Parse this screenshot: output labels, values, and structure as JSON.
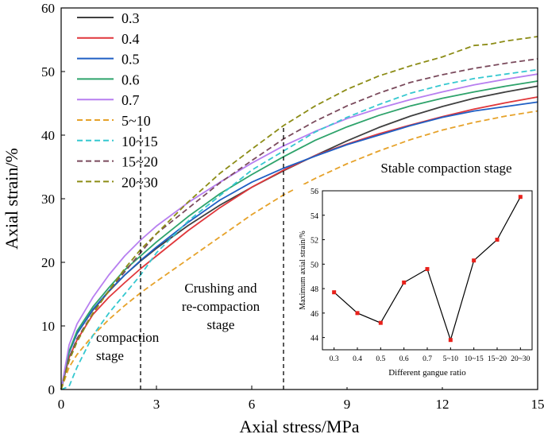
{
  "chart_data": [
    {
      "type": "line",
      "title": "",
      "xlabel": "Axial stress/MPa",
      "ylabel": "Axial strain/%",
      "xlim": [
        0,
        15
      ],
      "ylim": [
        0,
        60
      ],
      "xticks": [
        0,
        3,
        6,
        9,
        12,
        15
      ],
      "yticks": [
        0,
        10,
        20,
        30,
        40,
        50,
        60
      ],
      "grid": false,
      "legend_position": "top-left",
      "stage_dividers": [
        2.5,
        7
      ],
      "annotations": [
        {
          "lines": [
            "Stable compaction stage"
          ],
          "anchor": "right-middle"
        },
        {
          "lines": [
            "Crushing and",
            "re-compaction",
            "stage"
          ],
          "anchor": "center-bottom"
        },
        {
          "lines": [
            "compaction",
            "stage"
          ],
          "anchor": "left-bottom"
        }
      ],
      "series": [
        {
          "name": "0.3",
          "style": "solid",
          "color": "#404040",
          "x": [
            0,
            0.25,
            0.5,
            1,
            1.5,
            2,
            2.5,
            3,
            4,
            5,
            6,
            7,
            8,
            9,
            10,
            11,
            12,
            13,
            14,
            15
          ],
          "y": [
            0,
            6,
            8.8,
            12.5,
            15.4,
            18,
            20.2,
            22.2,
            25.8,
            29,
            31.8,
            34.4,
            36.8,
            39.1,
            41.2,
            43,
            44.5,
            45.8,
            46.8,
            47.7
          ]
        },
        {
          "name": "0.4",
          "style": "solid",
          "color": "#e0373b",
          "x": [
            0,
            0.25,
            0.5,
            1,
            1.5,
            2,
            2.5,
            3,
            4,
            5,
            6,
            7,
            8,
            9,
            10,
            11,
            12,
            13,
            14,
            15
          ],
          "y": [
            0,
            5,
            7.8,
            11.8,
            14.5,
            16.8,
            19,
            21,
            25,
            28.6,
            31.8,
            34.5,
            36.8,
            38.6,
            40.2,
            41.6,
            42.9,
            44.1,
            45.1,
            46
          ]
        },
        {
          "name": "0.5",
          "style": "solid",
          "color": "#1f5fc4",
          "x": [
            0,
            0.25,
            0.5,
            1,
            1.5,
            2,
            2.5,
            3,
            4,
            5,
            6,
            7,
            8,
            9,
            10,
            11,
            12,
            13,
            14,
            15
          ],
          "y": [
            0,
            5.8,
            8.8,
            12.6,
            15.5,
            18,
            20.3,
            22.4,
            26.3,
            29.8,
            32.6,
            34.8,
            36.7,
            38.5,
            40,
            41.5,
            42.8,
            43.8,
            44.5,
            45.2
          ]
        },
        {
          "name": "0.6",
          "style": "solid",
          "color": "#2ea36b",
          "x": [
            0,
            0.25,
            0.5,
            1,
            1.5,
            2,
            2.5,
            3,
            4,
            5,
            6,
            7,
            8,
            9,
            10,
            11,
            12,
            13,
            14,
            15
          ],
          "y": [
            0,
            6,
            9.2,
            13,
            16,
            18.8,
            21,
            23.2,
            27.2,
            30.8,
            33.8,
            36.6,
            39.2,
            41.3,
            43.1,
            44.6,
            45.8,
            46.8,
            47.7,
            48.5
          ]
        },
        {
          "name": "0.7",
          "style": "solid",
          "color": "#b77ff0",
          "x": [
            0,
            0.25,
            0.5,
            1,
            1.5,
            2,
            2.5,
            3,
            4,
            5,
            6,
            7,
            8,
            9,
            10,
            11,
            12,
            13,
            14,
            15
          ],
          "y": [
            0,
            7,
            10.3,
            14.5,
            18,
            21,
            23.5,
            25.7,
            29.4,
            32.6,
            35.6,
            38.3,
            40.6,
            42.6,
            44.2,
            45.6,
            46.8,
            47.9,
            48.8,
            49.6
          ]
        },
        {
          "name": "5~10",
          "style": "dashed",
          "color": "#e6a22a",
          "x": [
            0,
            0.25,
            0.5,
            1,
            1.5,
            2,
            2.5,
            3,
            4,
            5,
            6,
            7,
            8,
            9,
            10,
            11,
            12,
            13,
            14,
            15
          ],
          "y": [
            0,
            3.5,
            5.5,
            8.5,
            11,
            13.2,
            15.2,
            17,
            20.5,
            24,
            27.5,
            30.6,
            33.2,
            35.5,
            37.5,
            39.3,
            40.8,
            42,
            43,
            43.8
          ]
        },
        {
          "name": "10~15",
          "style": "dashed",
          "color": "#35c8d0",
          "x": [
            0,
            0.25,
            0.5,
            1,
            1.5,
            2,
            2.5,
            3,
            4,
            5,
            6,
            7,
            8,
            9,
            10,
            11,
            12,
            13,
            14,
            15
          ],
          "y": [
            0,
            0.5,
            3.5,
            8.5,
            12,
            15,
            18,
            21.5,
            26.5,
            30.5,
            34.5,
            37.5,
            40.5,
            42.8,
            44.8,
            46.6,
            47.9,
            48.9,
            49.6,
            50.3
          ]
        },
        {
          "name": "15~20",
          "style": "dashed",
          "color": "#7a4a5c",
          "x": [
            0,
            0.25,
            0.5,
            1,
            1.5,
            2,
            2.5,
            3,
            4,
            5,
            6,
            7,
            8,
            9,
            10,
            11,
            12,
            13,
            14,
            15
          ],
          "y": [
            0,
            5,
            8,
            12,
            15.5,
            18.5,
            21.5,
            24.5,
            28.5,
            32.5,
            36,
            39.4,
            42.2,
            44.6,
            46.6,
            48.3,
            49.5,
            50.5,
            51.3,
            52
          ]
        },
        {
          "name": "20~30",
          "style": "dashed",
          "color": "#8c8c16",
          "x": [
            0,
            0.25,
            0.5,
            1,
            1.5,
            2,
            2.5,
            3,
            4,
            5,
            6,
            7,
            8,
            9,
            10,
            11,
            12,
            13,
            13.5,
            14,
            15
          ],
          "y": [
            0,
            4.5,
            7.5,
            12,
            15.5,
            19,
            22,
            24.5,
            29.5,
            34,
            37.8,
            41.5,
            44.6,
            47.2,
            49.3,
            50.9,
            52.3,
            54.1,
            54.3,
            54.8,
            55.5
          ]
        }
      ]
    },
    {
      "type": "line",
      "title": "",
      "xlabel": "Different gangue ratio",
      "ylabel": "Maximum axial strain/%",
      "categories": [
        "0.3",
        "0.4",
        "0.5",
        "0.6",
        "0.7",
        "5~10",
        "10~15",
        "15~20",
        "20~30"
      ],
      "values": [
        47.7,
        46,
        45.2,
        48.5,
        49.6,
        43.8,
        50.3,
        52,
        55.5
      ],
      "ylim": [
        43,
        56
      ],
      "yticks": [
        44,
        46,
        48,
        50,
        52,
        54,
        56
      ],
      "grid": false,
      "marker": "square",
      "line_color": "#000000",
      "marker_color": "#e8211b"
    }
  ]
}
